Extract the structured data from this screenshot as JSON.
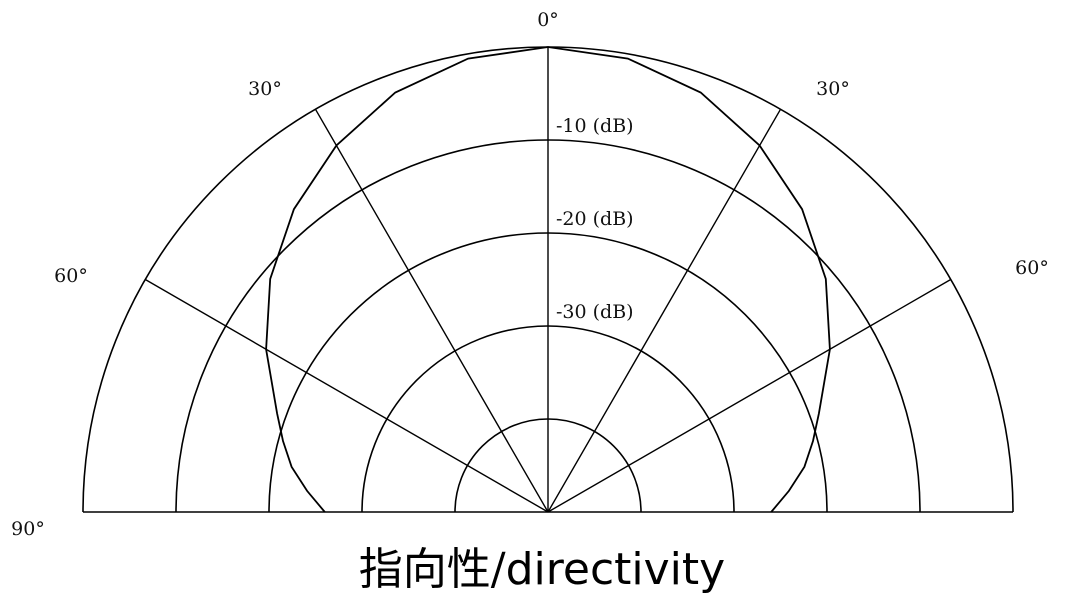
{
  "chart_data": {
    "type": "polar",
    "subtype": "half-polar directivity pattern",
    "title_cjk": "指向性",
    "title_sep": "/",
    "title_en": "directivity",
    "angle_range_deg": [
      -90,
      90
    ],
    "angle_ticks": [
      {
        "angle": 0,
        "label": "0°"
      },
      {
        "angle": -30,
        "label": "30°"
      },
      {
        "angle": 30,
        "label": "30°"
      },
      {
        "angle": -60,
        "label": "60°"
      },
      {
        "angle": 60,
        "label": "60°"
      },
      {
        "angle": -90,
        "label": "90°"
      },
      {
        "angle": 90,
        "label": "90°"
      }
    ],
    "radial_axis_dB": {
      "rings": [
        0,
        -10,
        -20,
        -30,
        -40
      ],
      "min": -50,
      "max": 0,
      "labeled_rings": [
        {
          "value": -10,
          "label": "-10 (dB)"
        },
        {
          "value": -20,
          "label": "-20 (dB)"
        },
        {
          "value": -30,
          "label": "-30 (dB)"
        }
      ]
    },
    "series": [
      {
        "angle_deg": [
          0,
          10,
          20,
          30,
          40,
          50,
          60,
          70,
          75,
          80,
          85,
          90
        ],
        "level_dB": [
          0,
          -0.5,
          -2,
          -4.5,
          -7.5,
          -11,
          -15,
          -19,
          -20.5,
          -22,
          -24,
          -26
        ]
      }
    ]
  }
}
